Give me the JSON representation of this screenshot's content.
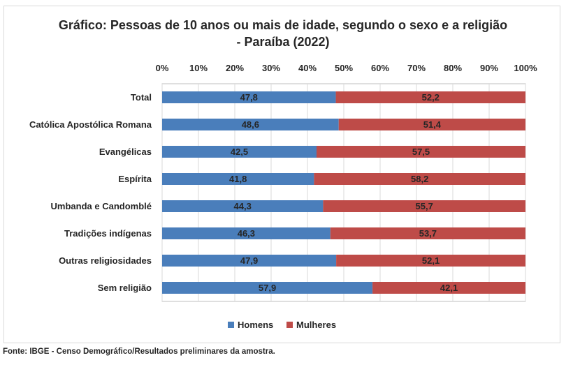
{
  "chart_data": {
    "type": "bar",
    "orientation": "horizontal",
    "stacked": true,
    "title_line1": "Gráfico: Pessoas de 10 anos ou mais de idade, segundo o sexo e a religião",
    "title_line2": "- Paraíba (2022)",
    "categories": [
      "Total",
      "Católica Apostólica Romana",
      "Evangélicas",
      "Espírita",
      "Umbanda e Candomblé",
      "Tradições indígenas",
      "Outras religiosidades",
      "Sem religião"
    ],
    "series": [
      {
        "name": "Homens",
        "color": "#4a7ebb",
        "values": [
          47.8,
          48.6,
          42.5,
          41.8,
          44.3,
          46.3,
          47.9,
          57.9
        ],
        "labels": [
          "47,8",
          "48,6",
          "42,5",
          "41,8",
          "44,3",
          "46,3",
          "47,9",
          "57,9"
        ]
      },
      {
        "name": "Mulheres",
        "color": "#be4b48",
        "values": [
          52.2,
          51.4,
          57.5,
          58.2,
          55.7,
          53.7,
          52.1,
          42.1
        ],
        "labels": [
          "52,2",
          "51,4",
          "57,5",
          "58,2",
          "55,7",
          "53,7",
          "52,1",
          "42,1"
        ]
      }
    ],
    "x_ticks": [
      "0%",
      "10%",
      "20%",
      "30%",
      "40%",
      "50%",
      "60%",
      "70%",
      "80%",
      "90%",
      "100%"
    ],
    "xlim": [
      0,
      100
    ],
    "grid": true,
    "legend_position": "bottom"
  },
  "source": "Fonte: IBGE - Censo Demográfico/Resultados preliminares da amostra."
}
